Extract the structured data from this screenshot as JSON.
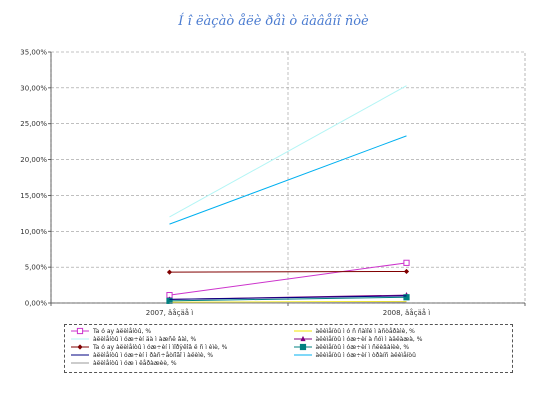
{
  "chart_data": {
    "type": "line",
    "title": "Í î ëàçàò åëè ðåì ò äàâåíî ñòè",
    "xlabel": "",
    "ylabel": "",
    "categories": [
      "2007, âåçäå ì",
      "2008, âåçäå ì"
    ],
    "ylim": [
      0,
      35
    ],
    "ytick_step": 5,
    "ytick_labels": [
      "0,00%",
      "5,00%",
      "10,00%",
      "15,00%",
      "20,00%",
      "25,00%",
      "30,00%",
      "35,00%"
    ],
    "grid": true,
    "legend_position": "bottom",
    "series": [
      {
        "name": "Ta ó ay àëèìåíòû, %",
        "values": [
          1.1,
          5.6
        ],
        "color": "#cc33cc",
        "marker": "square-open"
      },
      {
        "name": "àëèìåíòû ì ó ñ ñàìîé ì àñòåðàìè, %",
        "values": [
          0.1,
          0.2
        ],
        "color": "#f2e600",
        "marker": "none"
      },
      {
        "name": "àëèìåíòû ì óæ÷èí äà ì àæñê âàì, %",
        "values": [
          12.0,
          30.3
        ],
        "color": "#b3f5f5",
        "marker": "none"
      },
      {
        "name": "àëèìåíòû ì óæ÷èí à ñóì ì àäëàæà, %",
        "values": [
          0.5,
          1.1
        ],
        "color": "#800080",
        "marker": "triangle"
      },
      {
        "name": "Ta ó ay àëèìåíòû ì óæ÷èí ì ìîðÿêîâ ë ñ ì èìè, %",
        "values": [
          4.3,
          4.4
        ],
        "color": "#800000",
        "marker": "diamond"
      },
      {
        "name": "àëèìåíòû ì óæ÷èí ì ñëèâàíèè, %",
        "values": [
          0.3,
          0.8
        ],
        "color": "#008080",
        "marker": "square"
      },
      {
        "name": "àëèìåíòû ì óæ÷èí ì ðàñ÷åòíîãî ì àëèìè, %",
        "values": [
          0.5,
          1.0
        ],
        "color": "#000080",
        "marker": "none"
      },
      {
        "name": "àëèìåíòû ì óæ÷èí ì òðàíñ àëèìåíòû",
        "values": [
          11.0,
          23.3
        ],
        "color": "#00b0f0",
        "marker": "none"
      },
      {
        "name": "àëèìåíòû ì óæ ì ëåðàæèè, %",
        "values": [
          0.0,
          0.1
        ],
        "color": "#999999",
        "marker": "none"
      }
    ]
  }
}
